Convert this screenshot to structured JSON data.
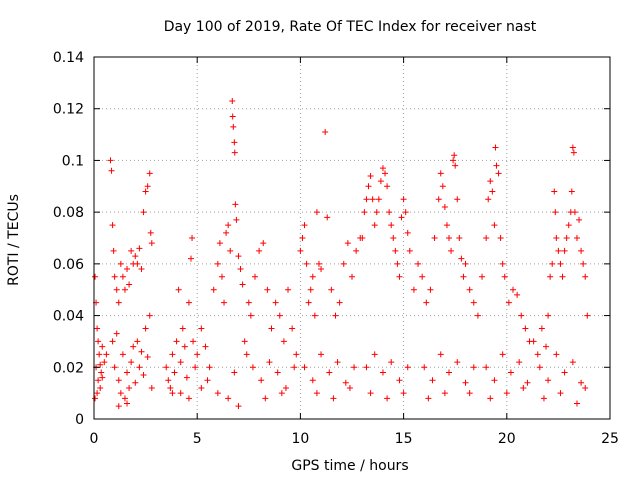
{
  "chart_data": {
    "type": "scatter",
    "title": "Day 100 of 2019, Rate Of TEC Index for receiver nast",
    "xlabel": "GPS time / hours",
    "ylabel": "ROTI / TECUs",
    "xlim": [
      0,
      25
    ],
    "ylim": [
      0,
      0.14
    ],
    "xticks": [
      0,
      5,
      10,
      15,
      20,
      25
    ],
    "xtick_labels": [
      "0",
      "5",
      "10",
      "15",
      "20",
      "25"
    ],
    "yticks": [
      0,
      0.02,
      0.04,
      0.06,
      0.08,
      0.1,
      0.12,
      0.14
    ],
    "ytick_labels": [
      "0",
      "0.02",
      "0.04",
      "0.06",
      "0.08",
      "0.1",
      "0.12",
      "0.14"
    ],
    "grid": true,
    "marker": "+",
    "marker_color": "#ff0000",
    "series": [
      {
        "name": "ROTI",
        "points": [
          [
            0.05,
            0.055
          ],
          [
            0.1,
            0.045
          ],
          [
            0.15,
            0.035
          ],
          [
            0.2,
            0.03
          ],
          [
            0.25,
            0.025
          ],
          [
            0.3,
            0.021
          ],
          [
            0.35,
            0.018
          ],
          [
            0.4,
            0.016
          ],
          [
            0.1,
            0.02
          ],
          [
            0.2,
            0.015
          ],
          [
            0.3,
            0.012
          ],
          [
            0.4,
            0.028
          ],
          [
            0.5,
            0.022
          ],
          [
            0.6,
            0.025
          ],
          [
            0.15,
            0.01
          ],
          [
            0.05,
            0.008
          ],
          [
            0.8,
            0.1
          ],
          [
            0.85,
            0.096
          ],
          [
            0.9,
            0.075
          ],
          [
            0.95,
            0.065
          ],
          [
            1.0,
            0.055
          ],
          [
            1.1,
            0.05
          ],
          [
            1.2,
            0.045
          ],
          [
            1.3,
            0.06
          ],
          [
            1.4,
            0.055
          ],
          [
            1.5,
            0.05
          ],
          [
            1.6,
            0.058
          ],
          [
            1.7,
            0.052
          ],
          [
            1.8,
            0.065
          ],
          [
            1.9,
            0.06
          ],
          [
            2.0,
            0.063
          ],
          [
            2.1,
            0.06
          ],
          [
            2.2,
            0.066
          ],
          [
            2.3,
            0.058
          ],
          [
            2.4,
            0.08
          ],
          [
            2.5,
            0.088
          ],
          [
            2.6,
            0.09
          ],
          [
            2.7,
            0.095
          ],
          [
            2.75,
            0.072
          ],
          [
            2.8,
            0.068
          ],
          [
            1.0,
            0.02
          ],
          [
            1.2,
            0.015
          ],
          [
            1.4,
            0.025
          ],
          [
            1.6,
            0.018
          ],
          [
            1.8,
            0.022
          ],
          [
            2.0,
            0.014
          ],
          [
            2.2,
            0.02
          ],
          [
            2.4,
            0.017
          ],
          [
            2.6,
            0.024
          ],
          [
            2.8,
            0.012
          ],
          [
            0.9,
            0.03
          ],
          [
            1.1,
            0.033
          ],
          [
            1.3,
            0.01
          ],
          [
            1.5,
            0.008
          ],
          [
            1.7,
            0.012
          ],
          [
            1.9,
            0.028
          ],
          [
            2.1,
            0.03
          ],
          [
            2.3,
            0.026
          ],
          [
            2.5,
            0.035
          ],
          [
            2.7,
            0.04
          ],
          [
            1.2,
            0.005
          ],
          [
            1.6,
            0.006
          ],
          [
            3.5,
            0.02
          ],
          [
            3.6,
            0.015
          ],
          [
            3.7,
            0.012
          ],
          [
            3.8,
            0.025
          ],
          [
            3.9,
            0.018
          ],
          [
            4.0,
            0.03
          ],
          [
            4.1,
            0.05
          ],
          [
            4.2,
            0.022
          ],
          [
            4.3,
            0.035
          ],
          [
            4.4,
            0.028
          ],
          [
            4.5,
            0.016
          ],
          [
            4.6,
            0.045
          ],
          [
            4.7,
            0.062
          ],
          [
            4.75,
            0.07
          ],
          [
            4.8,
            0.03
          ],
          [
            4.9,
            0.02
          ],
          [
            3.8,
            0.01
          ],
          [
            4.2,
            0.01
          ],
          [
            4.6,
            0.008
          ],
          [
            5.0,
            0.025
          ],
          [
            5.2,
            0.035
          ],
          [
            5.4,
            0.028
          ],
          [
            5.6,
            0.02
          ],
          [
            5.8,
            0.05
          ],
          [
            6.0,
            0.06
          ],
          [
            6.1,
            0.068
          ],
          [
            6.2,
            0.055
          ],
          [
            6.3,
            0.045
          ],
          [
            6.4,
            0.072
          ],
          [
            6.5,
            0.075
          ],
          [
            6.6,
            0.065
          ],
          [
            6.7,
            0.123
          ],
          [
            6.72,
            0.117
          ],
          [
            6.75,
            0.113
          ],
          [
            6.8,
            0.107
          ],
          [
            6.82,
            0.103
          ],
          [
            6.85,
            0.083
          ],
          [
            6.9,
            0.077
          ],
          [
            7.0,
            0.063
          ],
          [
            7.1,
            0.058
          ],
          [
            7.2,
            0.052
          ],
          [
            5.5,
            0.015
          ],
          [
            6.0,
            0.01
          ],
          [
            6.5,
            0.008
          ],
          [
            7.0,
            0.005
          ],
          [
            5.2,
            0.012
          ],
          [
            6.8,
            0.018
          ],
          [
            7.3,
            0.03
          ],
          [
            7.4,
            0.025
          ],
          [
            7.5,
            0.045
          ],
          [
            7.6,
            0.04
          ],
          [
            7.8,
            0.055
          ],
          [
            8.0,
            0.065
          ],
          [
            8.2,
            0.068
          ],
          [
            8.4,
            0.05
          ],
          [
            8.6,
            0.035
          ],
          [
            8.8,
            0.045
          ],
          [
            9.0,
            0.04
          ],
          [
            9.2,
            0.03
          ],
          [
            9.4,
            0.05
          ],
          [
            9.6,
            0.035
          ],
          [
            9.8,
            0.025
          ],
          [
            7.7,
            0.02
          ],
          [
            8.1,
            0.015
          ],
          [
            8.5,
            0.022
          ],
          [
            8.9,
            0.018
          ],
          [
            9.3,
            0.012
          ],
          [
            9.7,
            0.02
          ],
          [
            8.3,
            0.008
          ],
          [
            9.1,
            0.01
          ],
          [
            10.0,
            0.065
          ],
          [
            10.1,
            0.07
          ],
          [
            10.2,
            0.075
          ],
          [
            10.3,
            0.06
          ],
          [
            10.4,
            0.045
          ],
          [
            10.5,
            0.05
          ],
          [
            10.6,
            0.055
          ],
          [
            10.7,
            0.04
          ],
          [
            10.8,
            0.08
          ],
          [
            10.9,
            0.06
          ],
          [
            11.0,
            0.058
          ],
          [
            11.2,
            0.111
          ],
          [
            11.3,
            0.078
          ],
          [
            11.5,
            0.05
          ],
          [
            11.7,
            0.04
          ],
          [
            11.9,
            0.045
          ],
          [
            12.1,
            0.06
          ],
          [
            12.3,
            0.068
          ],
          [
            12.5,
            0.055
          ],
          [
            12.7,
            0.065
          ],
          [
            12.9,
            0.07
          ],
          [
            10.2,
            0.02
          ],
          [
            10.6,
            0.015
          ],
          [
            11.0,
            0.025
          ],
          [
            11.4,
            0.018
          ],
          [
            11.8,
            0.022
          ],
          [
            12.2,
            0.014
          ],
          [
            12.6,
            0.02
          ],
          [
            10.8,
            0.01
          ],
          [
            11.6,
            0.008
          ],
          [
            12.4,
            0.012
          ],
          [
            13.0,
            0.07
          ],
          [
            13.1,
            0.08
          ],
          [
            13.2,
            0.085
          ],
          [
            13.3,
            0.09
          ],
          [
            13.4,
            0.094
          ],
          [
            13.5,
            0.085
          ],
          [
            13.6,
            0.075
          ],
          [
            13.7,
            0.08
          ],
          [
            13.8,
            0.085
          ],
          [
            13.9,
            0.092
          ],
          [
            14.0,
            0.097
          ],
          [
            14.1,
            0.095
          ],
          [
            14.2,
            0.09
          ],
          [
            14.3,
            0.08
          ],
          [
            14.4,
            0.075
          ],
          [
            14.5,
            0.07
          ],
          [
            14.6,
            0.065
          ],
          [
            14.7,
            0.06
          ],
          [
            14.8,
            0.055
          ],
          [
            14.9,
            0.078
          ],
          [
            15.0,
            0.085
          ],
          [
            15.1,
            0.08
          ],
          [
            15.2,
            0.072
          ],
          [
            15.3,
            0.065
          ],
          [
            13.2,
            0.02
          ],
          [
            13.6,
            0.025
          ],
          [
            14.0,
            0.018
          ],
          [
            14.4,
            0.022
          ],
          [
            14.8,
            0.015
          ],
          [
            15.2,
            0.02
          ],
          [
            13.4,
            0.01
          ],
          [
            14.2,
            0.008
          ],
          [
            15.0,
            0.01
          ],
          [
            15.5,
            0.05
          ],
          [
            15.7,
            0.06
          ],
          [
            15.9,
            0.055
          ],
          [
            16.1,
            0.045
          ],
          [
            16.3,
            0.05
          ],
          [
            16.5,
            0.07
          ],
          [
            16.7,
            0.085
          ],
          [
            16.8,
            0.095
          ],
          [
            16.9,
            0.09
          ],
          [
            17.0,
            0.082
          ],
          [
            17.1,
            0.075
          ],
          [
            17.2,
            0.07
          ],
          [
            17.3,
            0.065
          ],
          [
            17.4,
            0.1
          ],
          [
            17.45,
            0.102
          ],
          [
            17.5,
            0.098
          ],
          [
            17.6,
            0.085
          ],
          [
            17.7,
            0.07
          ],
          [
            17.8,
            0.062
          ],
          [
            17.9,
            0.055
          ],
          [
            18.0,
            0.06
          ],
          [
            18.2,
            0.05
          ],
          [
            18.4,
            0.045
          ],
          [
            18.6,
            0.04
          ],
          [
            16.0,
            0.02
          ],
          [
            16.4,
            0.015
          ],
          [
            16.8,
            0.025
          ],
          [
            17.2,
            0.018
          ],
          [
            17.6,
            0.022
          ],
          [
            18.0,
            0.014
          ],
          [
            18.4,
            0.02
          ],
          [
            16.2,
            0.008
          ],
          [
            17.0,
            0.01
          ],
          [
            18.2,
            0.01
          ],
          [
            18.8,
            0.055
          ],
          [
            19.0,
            0.07
          ],
          [
            19.1,
            0.085
          ],
          [
            19.2,
            0.092
          ],
          [
            19.3,
            0.088
          ],
          [
            19.4,
            0.075
          ],
          [
            19.45,
            0.105
          ],
          [
            19.5,
            0.098
          ],
          [
            19.6,
            0.095
          ],
          [
            19.7,
            0.07
          ],
          [
            19.8,
            0.06
          ],
          [
            19.9,
            0.055
          ],
          [
            20.1,
            0.045
          ],
          [
            20.3,
            0.05
          ],
          [
            20.5,
            0.048
          ],
          [
            20.7,
            0.04
          ],
          [
            20.9,
            0.035
          ],
          [
            21.1,
            0.03
          ],
          [
            19.0,
            0.02
          ],
          [
            19.4,
            0.015
          ],
          [
            19.8,
            0.025
          ],
          [
            20.2,
            0.018
          ],
          [
            20.6,
            0.022
          ],
          [
            21.0,
            0.014
          ],
          [
            19.2,
            0.008
          ],
          [
            20.0,
            0.01
          ],
          [
            20.8,
            0.012
          ],
          [
            21.3,
            0.03
          ],
          [
            21.5,
            0.025
          ],
          [
            21.7,
            0.035
          ],
          [
            21.9,
            0.028
          ],
          [
            22.0,
            0.04
          ],
          [
            22.1,
            0.055
          ],
          [
            22.2,
            0.06
          ],
          [
            22.3,
            0.088
          ],
          [
            22.35,
            0.08
          ],
          [
            22.4,
            0.07
          ],
          [
            22.5,
            0.065
          ],
          [
            22.6,
            0.06
          ],
          [
            22.7,
            0.055
          ],
          [
            22.8,
            0.065
          ],
          [
            22.9,
            0.07
          ],
          [
            23.0,
            0.075
          ],
          [
            23.1,
            0.08
          ],
          [
            23.15,
            0.088
          ],
          [
            23.2,
            0.105
          ],
          [
            23.25,
            0.103
          ],
          [
            23.3,
            0.08
          ],
          [
            23.4,
            0.07
          ],
          [
            23.5,
            0.077
          ],
          [
            23.6,
            0.065
          ],
          [
            23.7,
            0.06
          ],
          [
            23.8,
            0.055
          ],
          [
            23.9,
            0.04
          ],
          [
            21.6,
            0.02
          ],
          [
            22.0,
            0.015
          ],
          [
            22.4,
            0.025
          ],
          [
            22.8,
            0.018
          ],
          [
            23.2,
            0.022
          ],
          [
            23.6,
            0.014
          ],
          [
            21.8,
            0.008
          ],
          [
            22.6,
            0.01
          ],
          [
            23.4,
            0.006
          ],
          [
            23.8,
            0.012
          ]
        ]
      }
    ]
  }
}
